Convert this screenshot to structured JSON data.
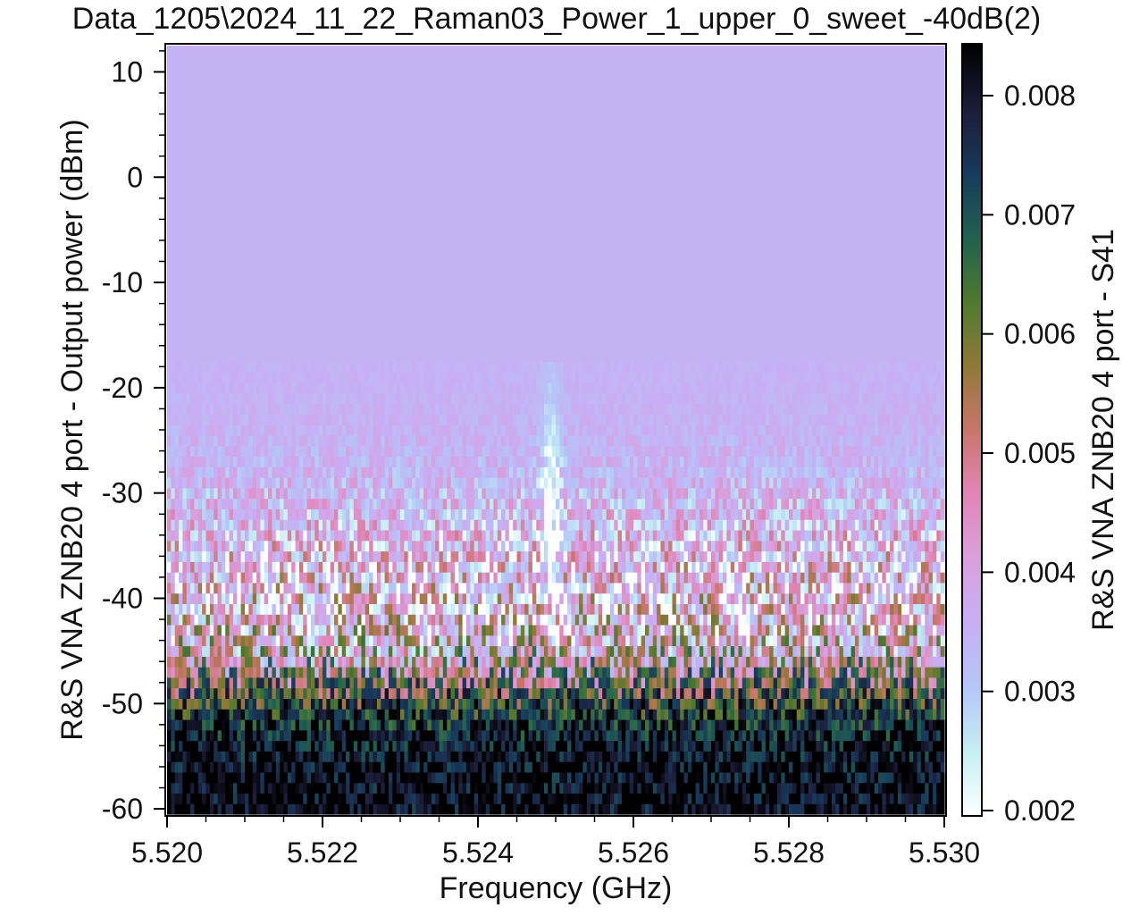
{
  "chart_data": {
    "type": "heatmap",
    "title": "Data_1205\\2024_11_22_Raman03_Power_1_upper_0_sweet_-40dB(2)",
    "xlabel": "Frequency (GHz)",
    "ylabel": "R&S VNA ZNB20 4 port - Output power (dBm)",
    "colorbar_label": "R&S VNA ZNB20 4 port - S41",
    "xlim": [
      5.52,
      5.53
    ],
    "ylim": [
      -60.5,
      12.5
    ],
    "zlim": [
      0.00197,
      0.00842
    ],
    "x_ticks": [
      5.52,
      5.522,
      5.524,
      5.526,
      5.528,
      5.53
    ],
    "x_tick_labels": [
      "5.520",
      "5.522",
      "5.524",
      "5.526",
      "5.528",
      "5.530"
    ],
    "y_ticks": [
      10,
      0,
      -10,
      -20,
      -30,
      -40,
      -50,
      -60
    ],
    "y_tick_labels": [
      "10",
      "0",
      "-10",
      "-20",
      "-30",
      "-40",
      "-50",
      "-60"
    ],
    "z_ticks": [
      0.008,
      0.007,
      0.006,
      0.005,
      0.004,
      0.003,
      0.002
    ],
    "z_tick_labels": [
      "0.008",
      "0.007",
      "0.006",
      "0.005",
      "0.004",
      "0.003",
      "0.002"
    ],
    "colormap": [
      "#ffffff",
      "#c4eff3",
      "#b5c6f7",
      "#c8aef5",
      "#d9a0dc",
      "#e285b8",
      "#c8766a",
      "#8f7a35",
      "#4e7a2e",
      "#1f6150",
      "#173a5c",
      "#1c1c38",
      "#000000"
    ],
    "grid": false,
    "data_profile": {
      "power_range_dbm": [
        -60,
        12
      ],
      "resonance_frequency_ghz": 5.52494,
      "resonance_visible_power_dbm": [
        -45,
        -15
      ],
      "baseline_high_power": 0.0035,
      "baseline_low_power": 0.0083,
      "transition_power_dbm": -48
    }
  }
}
